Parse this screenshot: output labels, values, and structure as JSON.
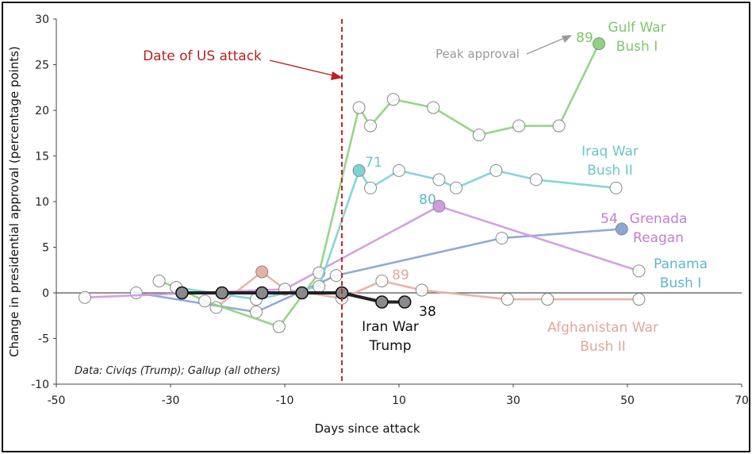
{
  "chart_data": {
    "type": "line",
    "xlabel": "Days since attack",
    "ylabel": "Change in presidential approval (percentage points)",
    "xlim": [
      -50,
      70
    ],
    "ylim": [
      -10,
      30
    ],
    "xticks": [
      -50,
      -30,
      -10,
      10,
      30,
      50,
      70
    ],
    "yticks": [
      -10,
      -5,
      0,
      5,
      10,
      15,
      20,
      25,
      30
    ],
    "attack_line_x": 0,
    "attack_label": "Date of US attack",
    "peak_label": "Peak approval",
    "source_note": "Data: Civiqs (Trump); Gallup (all others)",
    "series": [
      {
        "id": "gulf",
        "name": [
          "Gulf War",
          "Bush I"
        ],
        "color": "#8fd47e",
        "peak": "89",
        "points": [
          [
            -32,
            1.3
          ],
          [
            -29,
            0.6
          ],
          [
            -24,
            -0.9
          ],
          [
            -11,
            -3.7
          ],
          [
            -4,
            2.2
          ],
          [
            3,
            20.3
          ],
          [
            5,
            18.3
          ],
          [
            9,
            21.2
          ],
          [
            16,
            20.3
          ],
          [
            24,
            17.3
          ],
          [
            31,
            18.3
          ],
          [
            38,
            18.3
          ],
          [
            45,
            27.3
          ]
        ]
      },
      {
        "id": "iraq",
        "name": [
          "Iraq War",
          "Bush II"
        ],
        "color": "#7dd4d6",
        "peak": "71",
        "points": [
          [
            -29,
            0.6
          ],
          [
            -15,
            -0.7
          ],
          [
            -4,
            0.7
          ],
          [
            3,
            13.4
          ],
          [
            5,
            11.5
          ],
          [
            10,
            13.4
          ],
          [
            17,
            12.4
          ],
          [
            20,
            11.5
          ],
          [
            27,
            13.4
          ],
          [
            34,
            12.4
          ],
          [
            48,
            11.5
          ]
        ]
      },
      {
        "id": "grenada",
        "name": [
          "Grenada",
          "Reagan"
        ],
        "color": "#d49ae0",
        "peak": "54",
        "points": [
          [
            -45,
            -0.5
          ],
          [
            -10,
            0.4
          ],
          [
            17,
            9.5
          ],
          [
            52,
            2.4
          ]
        ]
      },
      {
        "id": "panama",
        "name": [
          "Panama",
          "Bush I"
        ],
        "color": "#8aa6d6",
        "peak": "80",
        "points": [
          [
            -36,
            0
          ],
          [
            -15,
            -2.1
          ],
          [
            -1,
            1.9
          ],
          [
            28,
            6.0
          ],
          [
            49,
            7.0
          ]
        ]
      },
      {
        "id": "afghan",
        "name": [
          "Afghanistan War",
          "Bush II"
        ],
        "color": "#e8b1a6",
        "peak": "89",
        "points": [
          [
            -22,
            -1.6
          ],
          [
            -14,
            2.3
          ],
          [
            -10,
            0.4
          ],
          [
            0,
            -0.6
          ],
          [
            7,
            1.3
          ],
          [
            14,
            0.3
          ],
          [
            29,
            -0.7
          ],
          [
            36,
            -0.7
          ],
          [
            52,
            -0.7
          ]
        ]
      },
      {
        "id": "iran",
        "name": [
          "Iran War",
          "Trump"
        ],
        "color": "#222222",
        "peak": "38",
        "points": [
          [
            -28,
            0
          ],
          [
            -21,
            0
          ],
          [
            -14,
            0
          ],
          [
            -7,
            0
          ],
          [
            0,
            0
          ],
          [
            7,
            -1
          ],
          [
            11,
            -1
          ]
        ]
      }
    ]
  }
}
